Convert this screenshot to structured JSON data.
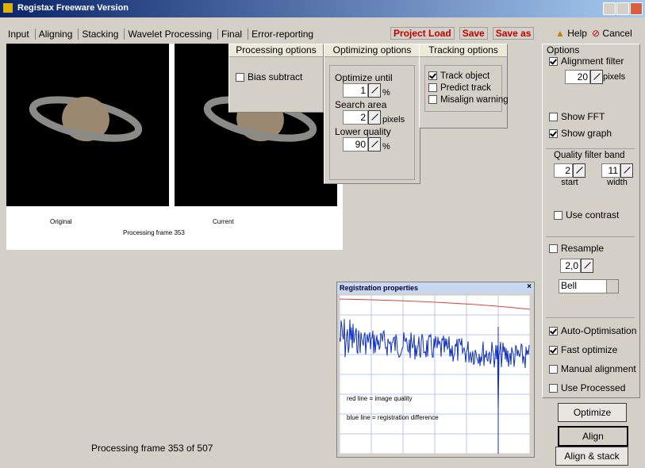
{
  "window": {
    "title": "Registax Freeware Version"
  },
  "tabs": [
    "Input",
    "Aligning",
    "Stacking",
    "Wavelet Processing",
    "Final",
    "Error-reporting"
  ],
  "file_actions": [
    "Project Load",
    "Save",
    "Save as"
  ],
  "help": "Help",
  "cancel": "Cancel",
  "preview": {
    "original_label": "Original",
    "current_label": "Current",
    "status": "Processing frame 353"
  },
  "processing_options": {
    "title": "Processing options",
    "checkboxes": [
      {
        "label": "Bias subtract",
        "checked": false
      }
    ]
  },
  "optimizing_options": {
    "title": "Optimizing options",
    "fields": [
      {
        "label": "Optimize until",
        "value": "1",
        "unit": "%"
      },
      {
        "label": "Search area",
        "value": "2",
        "unit": "pixels"
      },
      {
        "label": "Lower quality",
        "value": "90",
        "unit": "%"
      }
    ]
  },
  "tracking_options": {
    "title": "Tracking options",
    "checkboxes": [
      {
        "label": "Track object",
        "checked": true
      },
      {
        "label": "Predict track",
        "checked": false
      },
      {
        "label": "Misalign warning",
        "checked": false
      }
    ]
  },
  "options": {
    "title": "Options",
    "alignment_filter": {
      "label": "Alignment filter",
      "checked": true,
      "value": "20",
      "unit": "pixels"
    },
    "display": [
      {
        "label": "Show FFT",
        "checked": false
      },
      {
        "label": "Show graph",
        "checked": true
      }
    ],
    "quality_filter_band": {
      "label": "Quality filter band",
      "start": {
        "value": "2",
        "label": "start"
      },
      "width": {
        "value": "11",
        "label": "width"
      }
    },
    "use_contrast": {
      "label": "Use contrast",
      "checked": false
    },
    "resample": {
      "label": "Resample",
      "checked": false,
      "value": "2,0",
      "filter": "Bell"
    },
    "modes": [
      {
        "label": "Auto-Optimisation",
        "checked": true
      },
      {
        "label": "Fast optimize",
        "checked": true
      },
      {
        "label": "Manual alignment",
        "checked": false
      },
      {
        "label": "Use Processed",
        "checked": false
      }
    ]
  },
  "buttons": [
    "Optimize",
    "Align",
    "Align & stack"
  ],
  "registration_window": {
    "title": "Registration properties",
    "legend": [
      "red line = image quality",
      "blue line = registration difference"
    ]
  },
  "status_bar": "Processing frame 353 of 507"
}
